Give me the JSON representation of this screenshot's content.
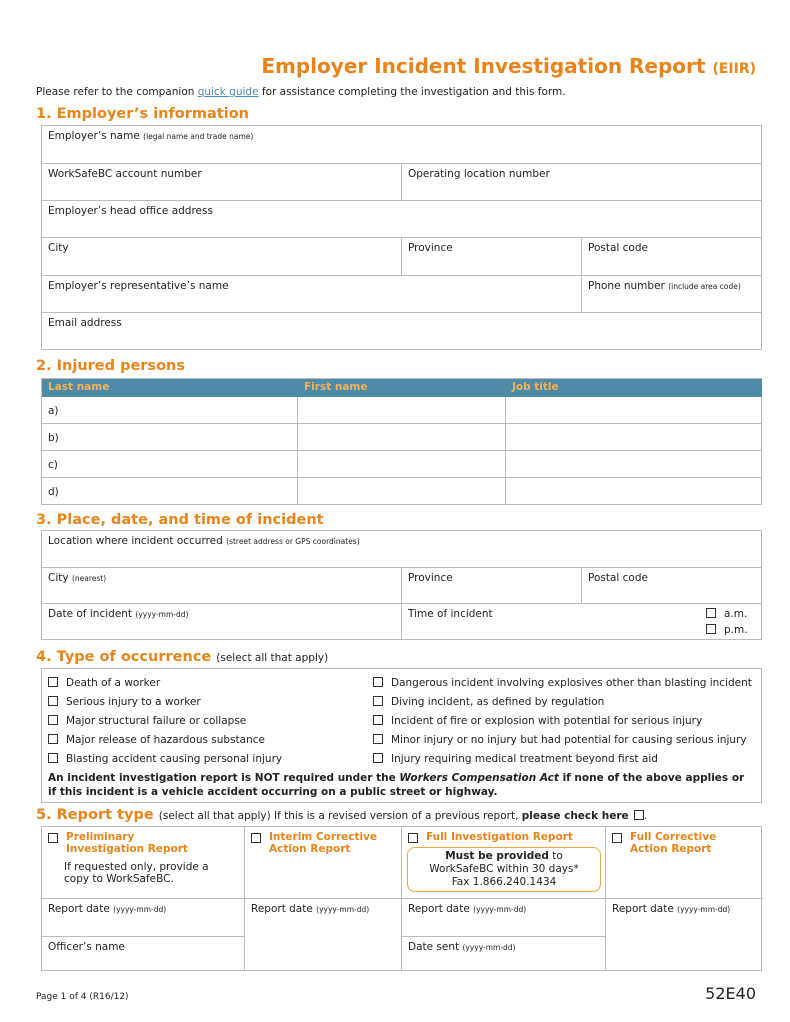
{
  "title": "Employer Incident Investigation Report",
  "title_abbr": "(EIIR)",
  "intro": {
    "before": "Please refer to the companion ",
    "link": "quick guide",
    "after": " for assistance completing the investigation and this form."
  },
  "s1": {
    "heading": "1.  Employer’s information",
    "employer_name": "Employer’s name",
    "employer_name_hint": "(legal name and trade name)",
    "account": "WorkSafeBC account number",
    "location": "Operating location number",
    "head_office": "Employer’s head office address",
    "city": "City",
    "province": "Province",
    "postal": "Postal code",
    "rep": "Employer’s representative’s name",
    "phone": "Phone number",
    "phone_hint": "(include area code)",
    "email": "Email address"
  },
  "s2": {
    "heading": "2.  Injured persons",
    "columns": [
      "Last name",
      "First name",
      "Job title"
    ],
    "rows": [
      "a)",
      "b)",
      "c)",
      "d)"
    ]
  },
  "s3": {
    "heading": "3.  Place, date, and time of incident",
    "location": "Location where incident occurred",
    "location_hint": "(street address or GPS coordinates)",
    "city": "City",
    "city_hint": "(nearest)",
    "province": "Province",
    "postal": "Postal code",
    "date": "Date of incident",
    "date_hint": "(yyyy-mm-dd)",
    "time": "Time of incident",
    "am": "a.m.",
    "pm": "p.m."
  },
  "s4": {
    "heading": "4.  Type of occurrence",
    "sub": "(select all that apply)",
    "left": [
      "Death of a worker",
      "Serious injury to a worker",
      "Major structural failure or collapse",
      "Major release of hazardous substance",
      "Blasting accident causing personal injury"
    ],
    "right": [
      "Dangerous incident involving explosives other than blasting incident",
      "Diving incident, as defined by regulation",
      "Incident of fire or explosion with potential for serious injury",
      "Minor injury or no injury but had potential for causing serious injury",
      "Injury requiring medical treatment beyond first aid"
    ],
    "note_a": "An incident investigation report is NOT required under the ",
    "note_act": "Workers Compensation Act",
    "note_b": " if none of the above applies or if this incident is a vehicle accident occurring on a public street or highway."
  },
  "s5": {
    "heading": "5.  Report type",
    "sub": "(select all that apply) If this is a revised version of a previous report, ",
    "sub_bold": "please check here",
    "types": [
      "Preliminary Investigation Report",
      "Interim Corrective Action Report",
      "Full Investigation Report",
      "Full Corrective Action Report"
    ],
    "prelim_note": "If requested only, provide a copy to WorkSafeBC.",
    "must_bold": "Must be provided",
    "must_rest": " to WorkSafeBC within 30 days*",
    "fax": "Fax 1.866.240.1434",
    "report_date": "Report date",
    "date_hint": "(yyyy-mm-dd)",
    "officer": "Officer’s name",
    "date_sent": "Date sent"
  },
  "footer": {
    "page": "Page 1 of 4  (R16/12)",
    "code": "52E40"
  }
}
